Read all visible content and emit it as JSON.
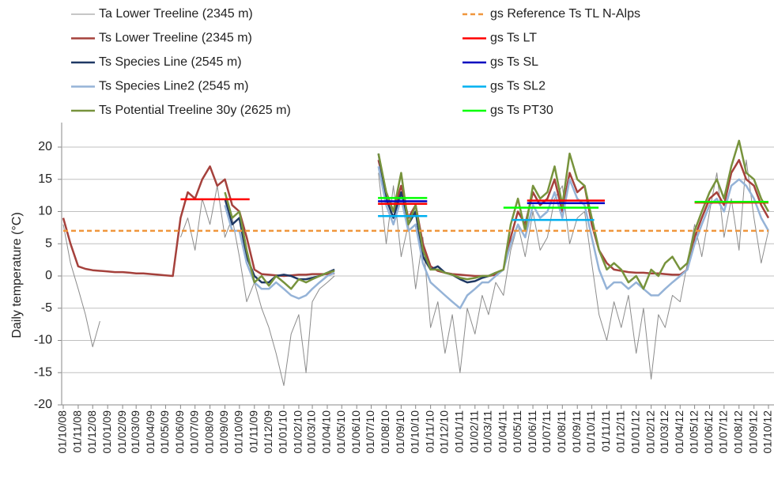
{
  "chart_data": {
    "type": "line",
    "y_label": "Daily temperature (°C)",
    "ylim": [
      -20,
      20
    ],
    "yticks": [
      -20,
      -15,
      -10,
      -5,
      0,
      5,
      10,
      15,
      20
    ],
    "grid": true,
    "xlim": [
      "01/10/08",
      "01/10/12"
    ],
    "xticks": [
      "01/10/08",
      "01/11/08",
      "01/12/08",
      "01/01/09",
      "01/02/09",
      "01/03/09",
      "01/04/09",
      "01/05/09",
      "01/06/09",
      "01/07/09",
      "01/08/09",
      "01/09/09",
      "01/10/09",
      "01/11/09",
      "01/12/09",
      "01/01/10",
      "01/02/10",
      "01/03/10",
      "01/04/10",
      "01/05/10",
      "01/06/10",
      "01/07/10",
      "01/08/10",
      "01/09/10",
      "01/10/10",
      "01/11/10",
      "01/12/10",
      "01/01/11",
      "01/02/11",
      "01/03/11",
      "01/04/11",
      "01/05/11",
      "01/06/11",
      "01/07/11",
      "01/08/11",
      "01/09/11",
      "01/10/11",
      "01/11/11",
      "01/12/11",
      "01/01/12",
      "01/02/12",
      "01/03/12",
      "01/04/12",
      "01/05/12",
      "01/06/12",
      "01/07/12",
      "01/08/12",
      "01/09/12",
      "01/10/12"
    ],
    "x": [
      "01/10/08",
      "16/10/08",
      "01/11/08",
      "16/11/08",
      "01/12/08",
      "16/12/08",
      "01/01/09",
      "16/01/09",
      "01/02/09",
      "16/02/09",
      "01/03/09",
      "16/03/09",
      "01/04/09",
      "16/04/09",
      "01/05/09",
      "16/05/09",
      "01/06/09",
      "16/06/09",
      "01/07/09",
      "16/07/09",
      "01/08/09",
      "16/08/09",
      "01/09/09",
      "16/09/09",
      "01/10/09",
      "16/10/09",
      "01/11/09",
      "16/11/09",
      "01/12/09",
      "16/12/09",
      "01/01/10",
      "16/01/10",
      "01/02/10",
      "16/02/10",
      "01/03/10",
      "16/03/10",
      "01/04/10",
      "16/04/10",
      "01/05/10",
      "16/05/10",
      "01/06/10",
      "16/06/10",
      "01/07/10",
      "16/07/10",
      "01/08/10",
      "16/08/10",
      "01/09/10",
      "16/09/10",
      "01/10/10",
      "16/10/10",
      "01/11/10",
      "16/11/10",
      "01/12/10",
      "16/12/10",
      "01/01/11",
      "16/01/11",
      "01/02/11",
      "16/02/11",
      "01/03/11",
      "16/03/11",
      "01/04/11",
      "16/04/11",
      "01/05/11",
      "16/05/11",
      "01/06/11",
      "16/06/11",
      "01/07/11",
      "16/07/11",
      "01/08/11",
      "16/08/11",
      "01/09/11",
      "16/09/11",
      "01/10/11",
      "16/10/11",
      "01/11/11",
      "16/11/11",
      "01/12/11",
      "16/12/11",
      "01/01/12",
      "16/01/12",
      "01/02/12",
      "16/02/12",
      "01/03/12",
      "16/03/12",
      "01/04/12",
      "16/04/12",
      "01/05/12",
      "16/05/12",
      "01/06/12",
      "16/06/12",
      "01/07/12",
      "16/07/12",
      "01/08/12",
      "16/08/12",
      "01/09/12",
      "16/09/12",
      "01/10/12"
    ],
    "series": [
      {
        "name": "Ta Lower Treeline (2345 m)",
        "color": "#8c8c8c",
        "line_width": 1,
        "values": [
          8,
          2,
          -2,
          -6,
          -11,
          -7,
          null,
          null,
          null,
          null,
          null,
          null,
          null,
          null,
          null,
          null,
          6,
          9,
          4,
          12,
          8,
          14,
          6,
          9,
          3,
          -4,
          -1,
          -5,
          -8,
          -12,
          -17,
          -9,
          -6,
          -15,
          -4,
          -2,
          -1,
          0,
          null,
          null,
          null,
          null,
          null,
          16,
          5,
          14,
          3,
          8,
          -2,
          6,
          -8,
          -4,
          -12,
          -6,
          -15,
          -5,
          -9,
          -3,
          -6,
          -1,
          -3,
          4,
          8,
          3,
          10,
          4,
          6,
          12,
          14,
          5,
          9,
          10,
          2,
          -6,
          -10,
          -4,
          -8,
          -3,
          -12,
          -5,
          -16,
          -6,
          -8,
          -3,
          -4,
          2,
          8,
          3,
          10,
          16,
          6,
          12,
          4,
          18,
          9,
          2,
          7
        ]
      },
      {
        "name": "Ts Lower Treeline (2345 m)",
        "color": "#a5413c",
        "line_width": 2.5,
        "values": [
          9,
          5,
          1.5,
          1.1,
          0.9,
          0.8,
          0.7,
          0.6,
          0.6,
          0.5,
          0.4,
          0.4,
          0.3,
          0.2,
          0.1,
          0,
          9,
          13,
          12,
          15,
          17,
          14,
          15,
          11,
          10,
          6,
          1,
          0.3,
          0.2,
          0.1,
          0,
          0.1,
          0.2,
          0.2,
          0.3,
          0.3,
          0.3,
          0.4,
          null,
          null,
          null,
          null,
          null,
          18,
          13,
          10,
          14,
          9,
          11,
          5,
          1.5,
          0.8,
          0.5,
          0.3,
          0.2,
          0.1,
          0,
          0,
          0,
          0.2,
          1,
          6,
          10,
          8,
          13,
          11,
          12,
          15,
          10,
          16,
          13,
          14,
          8,
          4,
          2,
          1,
          0.8,
          0.6,
          0.5,
          0.5,
          0.4,
          0.4,
          0.3,
          0.2,
          0.2,
          1,
          6,
          9,
          12,
          13,
          11,
          16,
          18,
          15,
          14,
          11,
          9
        ]
      },
      {
        "name": "Ts Species Line (2545 m)",
        "color": "#1f3864",
        "line_width": 2.5,
        "values": [
          null,
          null,
          null,
          null,
          null,
          null,
          null,
          null,
          null,
          null,
          null,
          null,
          null,
          null,
          null,
          null,
          null,
          null,
          null,
          null,
          null,
          null,
          12,
          8,
          9,
          3,
          0,
          -1,
          -1,
          0,
          0.2,
          0,
          -0.5,
          -0.5,
          -0.3,
          0,
          0.5,
          1,
          null,
          null,
          null,
          null,
          null,
          19,
          12,
          9,
          13,
          8,
          10,
          3,
          1,
          1.5,
          0.5,
          0.2,
          -0.5,
          -1,
          -0.8,
          -0.3,
          0,
          0.5,
          null,
          null,
          null,
          null,
          null,
          null,
          null,
          null,
          null,
          null,
          null,
          null,
          null,
          null,
          null,
          null,
          null,
          null,
          null,
          null,
          null,
          null,
          null,
          null,
          null,
          null,
          null,
          null,
          null,
          null,
          null,
          null,
          null,
          null,
          null,
          null,
          null
        ]
      },
      {
        "name": "Ts Species Line2 (2545 m)",
        "color": "#95b3d7",
        "line_width": 2.5,
        "values": [
          null,
          null,
          null,
          null,
          null,
          null,
          null,
          null,
          null,
          null,
          null,
          null,
          null,
          null,
          null,
          null,
          null,
          null,
          null,
          null,
          null,
          null,
          11,
          7,
          7,
          2,
          -1,
          -2,
          -2,
          -1,
          -2,
          -3,
          -3.5,
          -3,
          -2,
          -1,
          0,
          0.5,
          null,
          null,
          null,
          null,
          null,
          17,
          11,
          8,
          12,
          7,
          8,
          2,
          -1,
          -2,
          -3,
          -4,
          -5,
          -3,
          -2,
          -1,
          -1,
          0,
          1,
          5,
          8,
          6,
          11,
          9,
          10,
          13,
          9,
          15,
          12,
          11,
          6,
          1,
          -2,
          -1,
          -1,
          -2,
          -1,
          -2,
          -3,
          -3,
          -2,
          -1,
          0,
          1,
          5,
          8,
          11,
          12,
          10,
          14,
          15,
          14,
          12,
          9,
          7
        ]
      },
      {
        "name": "Ts Potential Treeline 30y (2625 m)",
        "color": "#77933c",
        "line_width": 2.5,
        "values": [
          null,
          null,
          null,
          null,
          null,
          null,
          null,
          null,
          null,
          null,
          null,
          null,
          null,
          null,
          null,
          null,
          null,
          null,
          null,
          null,
          null,
          null,
          13,
          9,
          10,
          4,
          -1,
          0,
          -1.5,
          0,
          -1,
          -2,
          -0.5,
          -1,
          -0.5,
          0,
          0.5,
          0.8,
          null,
          null,
          null,
          null,
          null,
          19,
          13,
          10,
          16,
          8,
          11,
          4,
          1,
          1,
          0.5,
          0.2,
          -0.3,
          -0.5,
          -0.3,
          0,
          0,
          0.5,
          1,
          8,
          12,
          7,
          14,
          12,
          13,
          17,
          11,
          19,
          15,
          14,
          9,
          4,
          1,
          2,
          1,
          -1,
          0,
          -2,
          1,
          0,
          2,
          3,
          1,
          2,
          7,
          10,
          13,
          15,
          12,
          17,
          21,
          16,
          15,
          12,
          10
        ]
      },
      {
        "name": "gs Reference Ts TL N-Alps",
        "color": "#f0963c",
        "line_width": 2.5,
        "dashed": true,
        "x": [
          "01/10/08",
          "01/10/12"
        ],
        "values": [
          7,
          7
        ]
      },
      {
        "name": "gs Ts LT",
        "color": "#ff0000",
        "line_width": 2.5,
        "x": [
          "01/06/09",
          "22/10/09",
          "01/01/10",
          "15/07/10",
          "25/10/10",
          "01/01/11",
          "20/05/11",
          "28/10/11",
          "01/01/12",
          "01/05/12",
          "01/10/12"
        ],
        "values": [
          11.9,
          11.9,
          null,
          11.2,
          11.2,
          null,
          11.7,
          11.7,
          null,
          11.4,
          11.4
        ]
      },
      {
        "name": "gs Ts SL",
        "color": "#0000c0",
        "line_width": 2.5,
        "x": [
          "15/07/10",
          "25/10/10",
          "01/01/11",
          "20/05/11",
          "28/10/11"
        ],
        "values": [
          11.6,
          11.6,
          null,
          11.3,
          11.3
        ]
      },
      {
        "name": "gs Ts SL2",
        "color": "#00b0f0",
        "line_width": 2.5,
        "x": [
          "15/07/10",
          "25/10/10",
          "01/01/11",
          "18/04/11",
          "06/10/11"
        ],
        "values": [
          9.3,
          9.3,
          null,
          8.7,
          8.7
        ]
      },
      {
        "name": "gs Ts PT30",
        "color": "#00ff00",
        "line_width": 2.5,
        "x": [
          "15/07/10",
          "25/10/10",
          "01/01/11",
          "01/04/11",
          "15/10/11",
          "01/01/12",
          "01/05/12",
          "01/10/12"
        ],
        "values": [
          12.1,
          12.1,
          null,
          10.6,
          10.6,
          null,
          11.5,
          11.5
        ]
      }
    ]
  }
}
